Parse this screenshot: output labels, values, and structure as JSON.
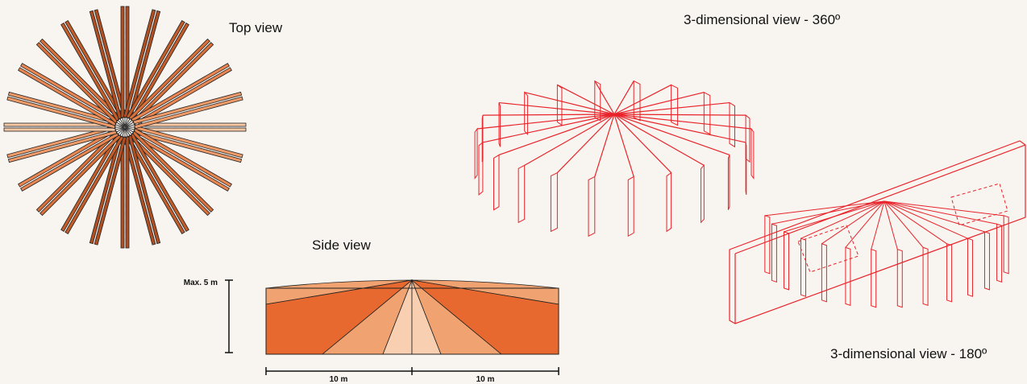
{
  "labels": {
    "top_view": "Top view",
    "side_view": "Side view",
    "view_360": "3-dimensional view - 360º",
    "view_180": "3-dimensional view - 180º"
  },
  "side_dimensions": {
    "height": "Max. 5 m",
    "left_width": "10 m",
    "right_width": "10 m"
  }
}
